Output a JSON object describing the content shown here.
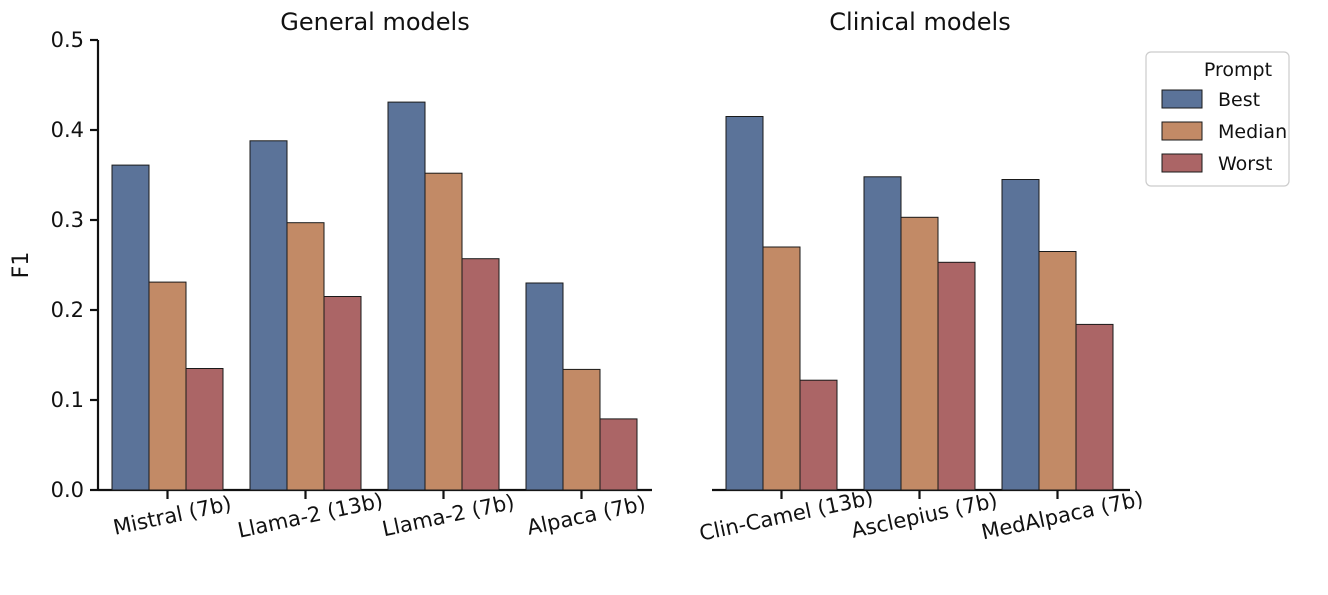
{
  "chart_data": [
    {
      "type": "bar",
      "title": "General models",
      "ylabel": "F1",
      "ylim": [
        0,
        0.5
      ],
      "yticks": [
        "0.0",
        "0.1",
        "0.2",
        "0.3",
        "0.4",
        "0.5"
      ],
      "categories": [
        "Mistral (7b)",
        "Llama-2 (13b)",
        "Llama-2 (7b)",
        "Alpaca (7b)"
      ],
      "series": [
        {
          "name": "Best",
          "color": "#5b7399",
          "values": [
            0.361,
            0.388,
            0.431,
            0.23
          ]
        },
        {
          "name": "Median",
          "color": "#c28a66",
          "values": [
            0.231,
            0.297,
            0.352,
            0.134
          ]
        },
        {
          "name": "Worst",
          "color": "#ab6566",
          "values": [
            0.135,
            0.215,
            0.257,
            0.079
          ]
        }
      ]
    },
    {
      "type": "bar",
      "title": "Clinical models",
      "ylim": [
        0,
        0.5
      ],
      "categories": [
        "Clin-Camel (13b)",
        "Asclepius (7b)",
        "MedAlpaca (7b)"
      ],
      "series": [
        {
          "name": "Best",
          "color": "#5b7399",
          "values": [
            0.415,
            0.348,
            0.345
          ]
        },
        {
          "name": "Median",
          "color": "#c28a66",
          "values": [
            0.27,
            0.303,
            0.265
          ]
        },
        {
          "name": "Worst",
          "color": "#ab6566",
          "values": [
            0.122,
            0.253,
            0.184
          ]
        }
      ]
    }
  ],
  "legend": {
    "title": "Prompt",
    "entries": [
      "Best",
      "Median",
      "Worst"
    ],
    "placement": "top-right"
  }
}
